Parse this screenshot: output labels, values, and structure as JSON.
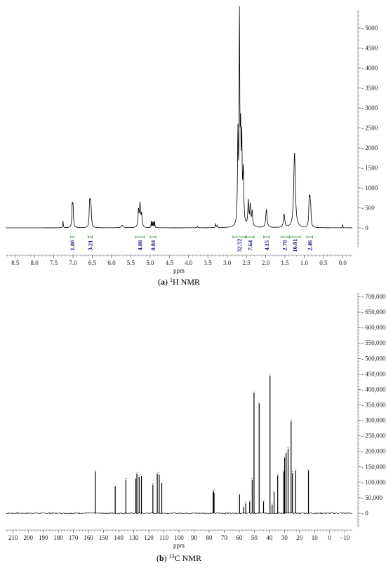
{
  "chart_data": [
    {
      "type": "line",
      "caption_letter": "a",
      "caption_super": "1",
      "caption_text": "H NMR",
      "xlabel": "ppm",
      "x_ticks": [
        8.5,
        8.0,
        7.5,
        7.0,
        6.5,
        6.0,
        5.5,
        5.0,
        4.5,
        4.0,
        3.5,
        3.0,
        2.5,
        2.0,
        1.5,
        1.0,
        0.5,
        0.0
      ],
      "y_ticks": [
        0,
        500,
        1000,
        1500,
        2000,
        2500,
        3000,
        3500,
        4000,
        4500,
        5000
      ],
      "xlim": [
        8.75,
        -0.25
      ],
      "ylim": [
        -500,
        5400
      ],
      "peaks": [
        {
          "ppm": 7.26,
          "height": 170,
          "width": 0.008
        },
        {
          "ppm": 7.02,
          "height": 520,
          "width": 0.012
        },
        {
          "ppm": 7.0,
          "height": 480,
          "width": 0.012
        },
        {
          "ppm": 6.57,
          "height": 560,
          "width": 0.012
        },
        {
          "ppm": 6.55,
          "height": 500,
          "width": 0.012
        },
        {
          "ppm": 6.53,
          "height": 380,
          "width": 0.012
        },
        {
          "ppm": 5.72,
          "height": 60,
          "width": 0.03
        },
        {
          "ppm": 5.3,
          "height": 420,
          "width": 0.015
        },
        {
          "ppm": 5.26,
          "height": 560,
          "width": 0.015
        },
        {
          "ppm": 5.22,
          "height": 320,
          "width": 0.015
        },
        {
          "ppm": 4.97,
          "height": 160,
          "width": 0.006
        },
        {
          "ppm": 4.94,
          "height": 160,
          "width": 0.006
        },
        {
          "ppm": 4.91,
          "height": 160,
          "width": 0.006
        },
        {
          "ppm": 4.88,
          "height": 160,
          "width": 0.006
        },
        {
          "ppm": 3.77,
          "height": 40,
          "width": 0.01
        },
        {
          "ppm": 3.3,
          "height": 90,
          "width": 0.01
        },
        {
          "ppm": 3.26,
          "height": 60,
          "width": 0.01
        },
        {
          "ppm": 2.72,
          "height": 2200,
          "width": 0.012
        },
        {
          "ppm": 2.68,
          "height": 5000,
          "width": 0.01
        },
        {
          "ppm": 2.65,
          "height": 2000,
          "width": 0.012
        },
        {
          "ppm": 2.62,
          "height": 1950,
          "width": 0.012
        },
        {
          "ppm": 2.58,
          "height": 1300,
          "width": 0.015
        },
        {
          "ppm": 2.45,
          "height": 620,
          "width": 0.015
        },
        {
          "ppm": 2.4,
          "height": 520,
          "width": 0.015
        },
        {
          "ppm": 2.35,
          "height": 380,
          "width": 0.015
        },
        {
          "ppm": 1.98,
          "height": 460,
          "width": 0.02
        },
        {
          "ppm": 1.52,
          "height": 330,
          "width": 0.02
        },
        {
          "ppm": 1.25,
          "height": 1880,
          "width": 0.025
        },
        {
          "ppm": 0.87,
          "height": 620,
          "width": 0.012
        },
        {
          "ppm": 0.85,
          "height": 560,
          "width": 0.012
        },
        {
          "ppm": 0.83,
          "height": 420,
          "width": 0.012
        },
        {
          "ppm": 0.0,
          "height": 90,
          "width": 0.006
        }
      ],
      "integrals": [
        {
          "label": "1.00",
          "from": 7.06,
          "to": 6.97
        },
        {
          "label": "3.21",
          "from": 6.61,
          "to": 6.5
        },
        {
          "label": "4.08",
          "from": 5.38,
          "to": 5.15
        },
        {
          "label": "0.84",
          "from": 5.0,
          "to": 4.85
        },
        {
          "label": "32.52",
          "from": 2.85,
          "to": 2.52
        },
        {
          "label": "7.64",
          "from": 2.5,
          "to": 2.3
        },
        {
          "label": "4.15",
          "from": 2.05,
          "to": 1.9
        },
        {
          "label": "2.70",
          "from": 1.6,
          "to": 1.42
        },
        {
          "label": "16.01",
          "from": 1.38,
          "to": 1.1
        },
        {
          "label": "2.46",
          "from": 0.93,
          "to": 0.78
        }
      ]
    },
    {
      "type": "line",
      "caption_letter": "b",
      "caption_super": "13",
      "caption_text": "C NMR",
      "xlabel": "ppm",
      "x_ticks": [
        210,
        200,
        190,
        180,
        170,
        160,
        150,
        140,
        130,
        120,
        110,
        100,
        90,
        80,
        70,
        60,
        50,
        40,
        30,
        20,
        10,
        0,
        -10
      ],
      "y_ticks": [
        0,
        50000,
        100000,
        150000,
        200000,
        250000,
        300000,
        350000,
        400000,
        450000,
        500000,
        550000,
        600000,
        650000,
        700000
      ],
      "y_tick_labels": [
        "0",
        "50,000",
        "100,000",
        "150,000",
        "200,000",
        "250,000",
        "300,000",
        "350,000",
        "400,000",
        "450,000",
        "500,000",
        "550,000",
        "600,000",
        "650,000",
        "700,000"
      ],
      "xlim": [
        215,
        -15
      ],
      "ylim": [
        -45000,
        720000
      ],
      "peaks": [
        {
          "ppm": 155.5,
          "height": 135000
        },
        {
          "ppm": 142.3,
          "height": 88000
        },
        {
          "ppm": 135.2,
          "height": 108000
        },
        {
          "ppm": 128.6,
          "height": 112000
        },
        {
          "ppm": 127.9,
          "height": 128000
        },
        {
          "ppm": 126.4,
          "height": 118000
        },
        {
          "ppm": 124.9,
          "height": 120000
        },
        {
          "ppm": 117.3,
          "height": 92000
        },
        {
          "ppm": 114.4,
          "height": 128000
        },
        {
          "ppm": 113.1,
          "height": 125000
        },
        {
          "ppm": 111.4,
          "height": 97000
        },
        {
          "ppm": 77.3,
          "height": 68000
        },
        {
          "ppm": 77.0,
          "height": 70000
        },
        {
          "ppm": 76.7,
          "height": 66000
        },
        {
          "ppm": 59.8,
          "height": 60000
        },
        {
          "ppm": 57.2,
          "height": 20000
        },
        {
          "ppm": 55.7,
          "height": 32000
        },
        {
          "ppm": 53.1,
          "height": 38000
        },
        {
          "ppm": 51.4,
          "height": 108000
        },
        {
          "ppm": 50.2,
          "height": 390000
        },
        {
          "ppm": 46.8,
          "height": 355000
        },
        {
          "ppm": 43.9,
          "height": 38000
        },
        {
          "ppm": 39.6,
          "height": 445000
        },
        {
          "ppm": 38.2,
          "height": 28000
        },
        {
          "ppm": 36.9,
          "height": 68000
        },
        {
          "ppm": 34.5,
          "height": 122000
        },
        {
          "ppm": 30.5,
          "height": 135000
        },
        {
          "ppm": 29.9,
          "height": 180000
        },
        {
          "ppm": 28.9,
          "height": 195000
        },
        {
          "ppm": 27.6,
          "height": 208000
        },
        {
          "ppm": 25.6,
          "height": 298000
        },
        {
          "ppm": 24.7,
          "height": 130000
        },
        {
          "ppm": 22.6,
          "height": 138000
        },
        {
          "ppm": 14.1,
          "height": 138000
        }
      ]
    }
  ]
}
